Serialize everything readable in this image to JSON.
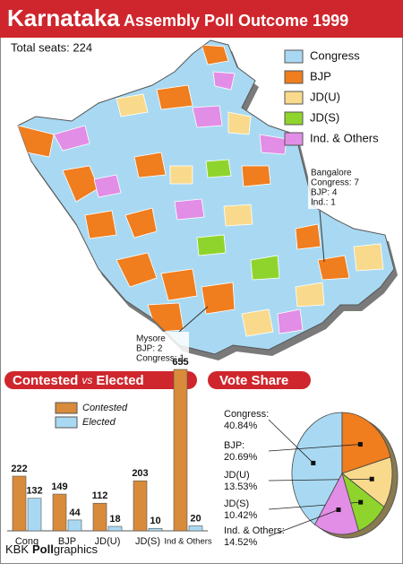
{
  "header": {
    "title": "Karnataka",
    "subtitle": "Assembly Poll Outcome 1999",
    "total_seats": "Total seats: 224"
  },
  "map": {
    "legend": [
      {
        "label": "Congress",
        "color": "#a9d9f2"
      },
      {
        "label": "BJP",
        "color": "#f07d1e"
      },
      {
        "label": "JD(U)",
        "color": "#f9da8c"
      },
      {
        "label": "JD(S)",
        "color": "#8fd42c"
      },
      {
        "label": "Ind. & Others",
        "color": "#e28de6"
      }
    ],
    "callouts": [
      {
        "lines": [
          "Bangalore",
          "Congress: 7",
          "BJP: 4",
          "Ind.: 1"
        ]
      },
      {
        "lines": [
          "Mysore",
          "BJP: 2",
          "Congress: 1"
        ]
      }
    ]
  },
  "chart_data": [
    {
      "type": "bar",
      "title": "Contested",
      "title_connector": "vs",
      "title_end": "Elected",
      "categories": [
        "Cong",
        "BJP",
        "JD(U)",
        "JD(S)",
        "Ind & Others"
      ],
      "series": [
        {
          "name": "Contested",
          "color": "#d88b3b",
          "values": [
            222,
            149,
            112,
            203,
            655
          ]
        },
        {
          "name": "Elected",
          "color": "#a9d9f2",
          "values": [
            132,
            44,
            18,
            10,
            20
          ]
        }
      ]
    },
    {
      "type": "pie",
      "title": "Vote Share",
      "categories": [
        "Congress:",
        "BJP:",
        "JD(U)",
        "JD(S)",
        "Ind. & Others:"
      ],
      "values": [
        40.84,
        20.69,
        13.53,
        10.42,
        14.52
      ],
      "value_labels": [
        "40.84%",
        "20.69%",
        "13.53%",
        "10.42%",
        "14.52%"
      ],
      "colors": [
        "#a9d9f2",
        "#f07d1e",
        "#f9da8c",
        "#8fd42c",
        "#e28de6"
      ]
    }
  ],
  "footer": {
    "brand": "KBK",
    "bold": "Poll",
    "rest": "graphics"
  }
}
